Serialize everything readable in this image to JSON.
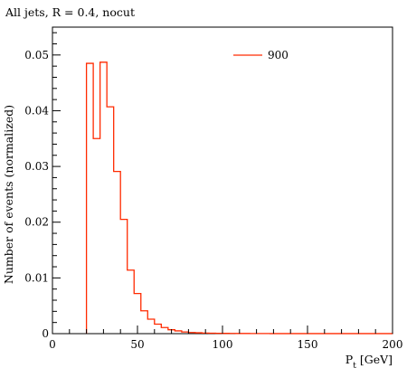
{
  "chart_data": {
    "type": "line",
    "title": "All jets, R = 0.4, nocut",
    "xlabel": "P",
    "xlabel_sub": "t",
    "xlabel_unit": "[GeV]",
    "ylabel": "Number of events (normalized)",
    "xlim": [
      0,
      200
    ],
    "ylim": [
      0,
      0.055
    ],
    "xticks": [
      0,
      50,
      100,
      150,
      200
    ],
    "xtick_labels": [
      "0",
      "50",
      "100",
      "150",
      "200"
    ],
    "yticks": [
      0,
      0.01,
      0.02,
      0.03,
      0.04,
      0.05
    ],
    "ytick_labels": [
      "0",
      "0.01",
      "0.02",
      "0.03",
      "0.04",
      "0.05"
    ],
    "grid": false,
    "legend": "top-right",
    "series": [
      {
        "name": "900",
        "color": "#ff2a00",
        "bin_edges": [
          20,
          24,
          28,
          32,
          36,
          40,
          44,
          48,
          52,
          56,
          60,
          64,
          68,
          72,
          76,
          80,
          84,
          88,
          92,
          96,
          100,
          104,
          108,
          112,
          116,
          120,
          124,
          128,
          132,
          136,
          140,
          144,
          148,
          152,
          156,
          160,
          164,
          168,
          172,
          176,
          180,
          184,
          188,
          192,
          196,
          200
        ],
        "values": [
          0.0485,
          0.035,
          0.0487,
          0.0407,
          0.0291,
          0.0205,
          0.0114,
          0.0072,
          0.0041,
          0.0026,
          0.0017,
          0.0011,
          0.0007,
          0.0005,
          0.0003,
          0.0002,
          0.00015,
          0.0001,
          8e-05,
          6e-05,
          5e-05,
          4e-05,
          3e-05,
          3e-05,
          2e-05,
          2e-05,
          2e-05,
          1e-05,
          1e-05,
          1e-05,
          1e-05,
          1e-05,
          1e-05,
          1e-05,
          1e-05,
          1e-05,
          1e-05,
          1e-05,
          1e-05,
          1e-05,
          1e-05,
          1e-05,
          1e-05,
          1e-05,
          1e-05
        ]
      }
    ]
  }
}
